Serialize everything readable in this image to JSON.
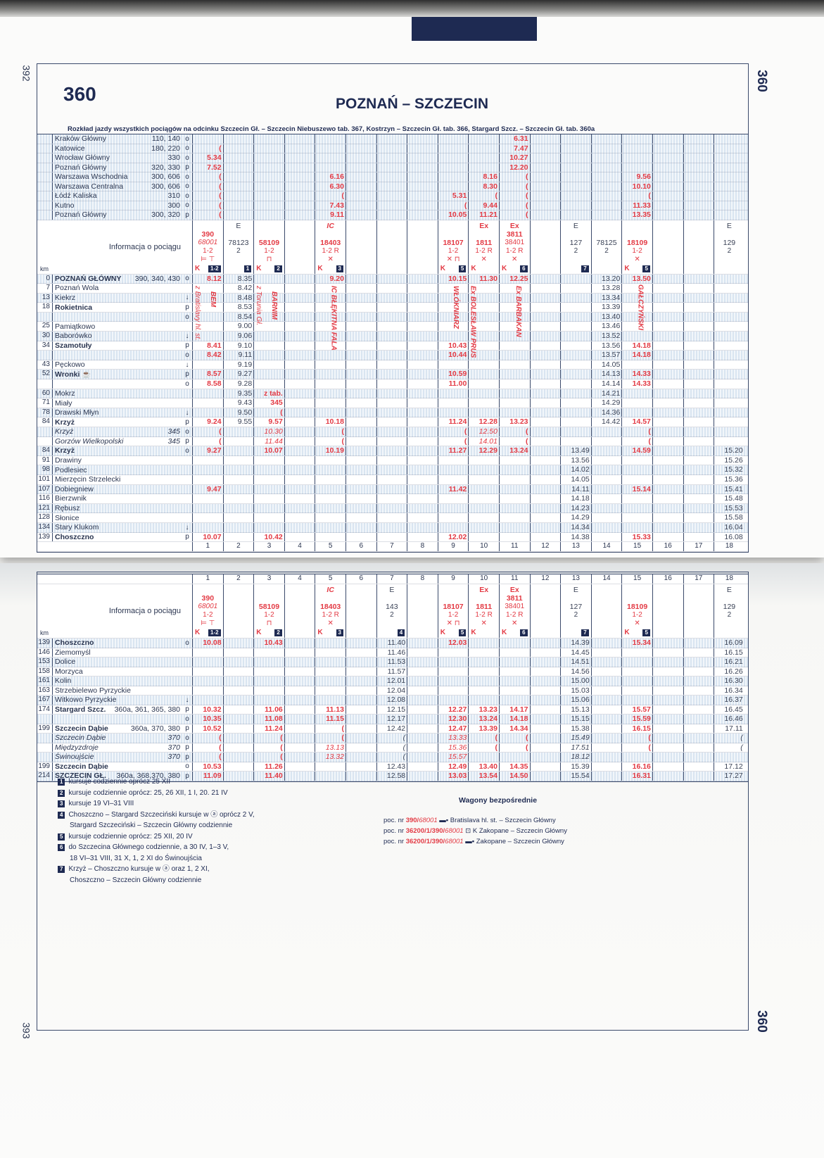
{
  "page_numbers": {
    "left_top": "392",
    "left_bottom": "393"
  },
  "side_label": "360",
  "header": {
    "table_number": "360",
    "title": "POZNAŃ – SZCZECIN",
    "subtitle": "Rozkład jazdy wszystkich pociągów na odcinku Szczecin Gł. – Szczecin Niebuszewo tab. 367, Kostrzyn – Szczecin Gł. tab. 366, Stargard Szcz. – Szczecin Gł.  tab. 360a"
  },
  "colors": {
    "red_train": "#e33a44",
    "ink": "#1e2a52",
    "shade": "#d9e5f1"
  },
  "red_columns": [
    1,
    3,
    5,
    9,
    10,
    11,
    15
  ],
  "info_label": "Informacja o pociągu",
  "km_label": "km",
  "column_numbers": [
    "1",
    "2",
    "3",
    "4",
    "5",
    "6",
    "7",
    "8",
    "9",
    "10",
    "11",
    "12",
    "13",
    "14",
    "15",
    "16",
    "17",
    "18"
  ],
  "top": {
    "feeders": [
      {
        "name": "Kraków Główny",
        "ref": "110, 140",
        "m": "o",
        "t": {
          "11": "6.31"
        }
      },
      {
        "name": "Katowice",
        "ref": "180, 220",
        "m": "o",
        "t": {
          "1": "(",
          "11": "7.47"
        }
      },
      {
        "name": "Wrocław Główny",
        "ref": "330",
        "m": "o",
        "t": {
          "1": "5.34",
          "11": "10.27"
        }
      },
      {
        "name": "Poznań Główny",
        "ref": "320, 330",
        "m": "p",
        "t": {
          "1": "7.52",
          "11": "12.20"
        }
      },
      {
        "name": "Warszawa Wschodnia",
        "ref": "300, 606",
        "m": "o",
        "t": {
          "1": "(",
          "5": "6.16",
          "10": "8.16",
          "11": "(",
          "15": "9.56"
        }
      },
      {
        "name": "Warszawa Centralna",
        "ref": "300, 606",
        "m": "o",
        "t": {
          "1": "(",
          "5": "6.30",
          "10": "8.30",
          "11": "(",
          "15": "10.10"
        }
      },
      {
        "name": "Łódź Kaliska",
        "ref": "310",
        "m": "o",
        "t": {
          "1": "(",
          "5": "(",
          "9": "5.31",
          "10": "(",
          "11": "(",
          "15": "("
        }
      },
      {
        "name": "Kutno",
        "ref": "300",
        "m": "o",
        "t": {
          "1": "(",
          "5": "7.43",
          "9": "(",
          "10": "9.44",
          "11": "(",
          "15": "11.33"
        }
      },
      {
        "name": "Poznań Główny",
        "ref": "300, 320",
        "m": "p",
        "t": {
          "1": "(",
          "5": "9.11",
          "9": "10.05",
          "10": "11.21",
          "11": "(",
          "15": "13.35"
        }
      }
    ],
    "info": [
      {
        "col": 1,
        "top": "",
        "lines": [
          "390",
          "68001",
          "1-2",
          "sleeper couchette"
        ],
        "k": "K",
        "note": "1-2"
      },
      {
        "col": 2,
        "top": "E",
        "lines": [
          "78123",
          "2"
        ],
        "k": "",
        "note": "1"
      },
      {
        "col": 3,
        "top": "",
        "lines": [
          "58109",
          "1-2",
          "bicycle"
        ],
        "k": "K",
        "note": "2"
      },
      {
        "col": 5,
        "top": "IC",
        "lines": [
          "18403",
          "1-2 R",
          "✕"
        ],
        "k": "K",
        "note": "3"
      },
      {
        "col": 9,
        "top": "",
        "lines": [
          "18107",
          "1-2",
          "✕ bicycle"
        ],
        "k": "K",
        "note": "5"
      },
      {
        "col": 10,
        "top": "Ex",
        "lines": [
          "1811",
          "1-2 R",
          "✕"
        ],
        "k": "K",
        "note": ""
      },
      {
        "col": 11,
        "top": "Ex",
        "lines": [
          "3811",
          "38401",
          "1-2 R",
          "✕"
        ],
        "k": "K",
        "note": "6"
      },
      {
        "col": 13,
        "top": "E",
        "lines": [
          "127",
          "2"
        ],
        "k": "",
        "note": "7"
      },
      {
        "col": 14,
        "top": "",
        "lines": [
          "78125",
          "2"
        ],
        "k": "",
        "note": ""
      },
      {
        "col": 15,
        "top": "",
        "lines": [
          "18109",
          "1-2",
          "✕"
        ],
        "k": "K",
        "note": "5"
      },
      {
        "col": 18,
        "top": "E",
        "lines": [
          "129",
          "2"
        ],
        "k": "",
        "note": ""
      }
    ],
    "rows": [
      {
        "km": "0",
        "name": "POZNAŃ GŁÓWNY",
        "ref": "390, 340, 430",
        "m": "o",
        "s": "b",
        "t": {
          "1": "8.12",
          "2": "8.35",
          "5": "9.20",
          "9": "10.15",
          "10": "11.30",
          "11": "12.25",
          "14": "13.20",
          "15": "13.50"
        }
      },
      {
        "km": "7",
        "name": "Poznań Wola",
        "ref": "",
        "m": "",
        "s": "",
        "t": {
          "2": "8.42",
          "14": "13.28"
        }
      },
      {
        "km": "13",
        "name": "Kiekrz",
        "ref": "",
        "m": "↓",
        "s": "",
        "t": {
          "2": "8.48",
          "14": "13.34"
        }
      },
      {
        "km": "18",
        "name": "Rokietnica",
        "ref": "",
        "m": "p",
        "s": "b",
        "t": {
          "2": "8.53",
          "14": "13.39"
        }
      },
      {
        "km": "",
        "name": "",
        "ref": "",
        "m": "o",
        "s": "",
        "t": {
          "2": "8.54",
          "14": "13.40"
        }
      },
      {
        "km": "25",
        "name": "Pamiątkowo",
        "ref": "",
        "m": "",
        "s": "",
        "t": {
          "2": "9.00",
          "14": "13.46"
        }
      },
      {
        "km": "30",
        "name": "Baborówko",
        "ref": "",
        "m": "↓",
        "s": "",
        "t": {
          "2": "9.06",
          "14": "13.52"
        }
      },
      {
        "km": "34",
        "name": "Szamotuły",
        "ref": "",
        "m": "p",
        "s": "b",
        "t": {
          "1": "8.41",
          "2": "9.10",
          "9": "10.43",
          "14": "13.56",
          "15": "14.18"
        }
      },
      {
        "km": "",
        "name": "",
        "ref": "",
        "m": "o",
        "s": "",
        "t": {
          "1": "8.42",
          "2": "9.11",
          "9": "10.44",
          "14": "13.57",
          "15": "14.18"
        }
      },
      {
        "km": "43",
        "name": "Pęckowo",
        "ref": "",
        "m": "↓",
        "s": "",
        "t": {
          "2": "9.19",
          "14": "14.05"
        }
      },
      {
        "km": "52",
        "name": "Wronki ☕",
        "ref": "",
        "m": "p",
        "s": "b",
        "t": {
          "1": "8.57",
          "2": "9.27",
          "9": "10.59",
          "14": "14.13",
          "15": "14.33"
        }
      },
      {
        "km": "",
        "name": "",
        "ref": "",
        "m": "o",
        "s": "",
        "t": {
          "1": "8.58",
          "2": "9.28",
          "9": "11.00",
          "14": "14.14",
          "15": "14.33"
        }
      },
      {
        "km": "60",
        "name": "Mokrz",
        "ref": "",
        "m": "",
        "s": "",
        "t": {
          "2": "9.35",
          "3": "z tab.",
          "14": "14.21"
        }
      },
      {
        "km": "71",
        "name": "Miały",
        "ref": "",
        "m": "",
        "s": "",
        "t": {
          "2": "9.43",
          "3": "345",
          "14": "14.29"
        }
      },
      {
        "km": "78",
        "name": "Drawski Młyn",
        "ref": "",
        "m": "↓",
        "s": "",
        "t": {
          "2": "9.50",
          "3": "(",
          "14": "14.36"
        }
      },
      {
        "km": "84",
        "name": "Krzyż",
        "ref": "",
        "m": "p",
        "s": "b",
        "t": {
          "1": "9.24",
          "2": "9.55",
          "3": "9.57",
          "5": "10.18",
          "9": "11.24",
          "10": "12.28",
          "11": "13.23",
          "14": "14.42",
          "15": "14.57"
        }
      },
      {
        "km": "",
        "name": "Krzyż",
        "ref": "345",
        "m": "o",
        "s": "i",
        "t": {
          "1": "(",
          "3": "10.30",
          "5": "(",
          "9": "(",
          "10": "12.50",
          "11": "(",
          "15": "("
        }
      },
      {
        "km": "",
        "name": "Gorzów Wielkopolski",
        "ref": "345",
        "m": "p",
        "s": "i",
        "t": {
          "1": "(",
          "3": "11.44",
          "5": "(",
          "9": "(",
          "10": "14.01",
          "11": "(",
          "15": "("
        }
      },
      {
        "km": "84",
        "name": "Krzyż",
        "ref": "",
        "m": "o",
        "s": "b",
        "t": {
          "1": "9.27",
          "3": "10.07",
          "5": "10.19",
          "9": "11.27",
          "10": "12.29",
          "11": "13.24",
          "13": "13.49",
          "15": "14.59",
          "18": "15.20"
        }
      },
      {
        "km": "91",
        "name": "Drawiny",
        "ref": "",
        "m": "",
        "s": "",
        "t": {
          "13": "13.56",
          "18": "15.26"
        }
      },
      {
        "km": "98",
        "name": "Podlesiec",
        "ref": "",
        "m": "",
        "s": "",
        "t": {
          "13": "14.02",
          "18": "15.32"
        }
      },
      {
        "km": "101",
        "name": "Mierzęcin Strzelecki",
        "ref": "",
        "m": "",
        "s": "",
        "t": {
          "13": "14.05",
          "18": "15.36"
        }
      },
      {
        "km": "107",
        "name": "Dobiegniew",
        "ref": "",
        "m": "",
        "s": "",
        "t": {
          "1": "9.47",
          "9": "11.42",
          "13": "14.11",
          "15": "15.14",
          "18": "15.41"
        }
      },
      {
        "km": "116",
        "name": "Bierzwnik",
        "ref": "",
        "m": "",
        "s": "",
        "t": {
          "13": "14.18",
          "18": "15.48"
        }
      },
      {
        "km": "121",
        "name": "Rębusz",
        "ref": "",
        "m": "",
        "s": "",
        "t": {
          "13": "14.23",
          "18": "15.53"
        }
      },
      {
        "km": "128",
        "name": "Słonice",
        "ref": "",
        "m": "",
        "s": "",
        "t": {
          "13": "14.29",
          "18": "15.58"
        }
      },
      {
        "km": "134",
        "name": "Stary Klukom",
        "ref": "",
        "m": "↓",
        "s": "",
        "t": {
          "13": "14.34",
          "18": "16.04"
        }
      },
      {
        "km": "139",
        "name": "Choszczno",
        "ref": "",
        "m": "p",
        "s": "b",
        "t": {
          "1": "10.07",
          "3": "10.42",
          "9": "12.02",
          "13": "14.38",
          "15": "15.33",
          "18": "16.08"
        }
      }
    ],
    "vertical_labels": [
      {
        "col": 1,
        "text": "z Bratislavy hl. st.",
        "style": "it"
      },
      {
        "col": 1,
        "text": "BEM",
        "style": "bold"
      },
      {
        "col": 3,
        "text": "z Torunia Gł.",
        "style": "it"
      },
      {
        "col": 3,
        "text": "BARNIM",
        "style": "bold"
      },
      {
        "col": 5,
        "text": "IC BŁĘKITNA FALA",
        "style": "bold"
      },
      {
        "col": 9,
        "text": "WŁÓKNIARZ",
        "style": "bold"
      },
      {
        "col": 10,
        "text": "Ex BOLESŁAW PRUS",
        "style": "bold"
      },
      {
        "col": 11,
        "text": "Ex BARBAKAN",
        "style": "bold"
      },
      {
        "col": 15,
        "text": "GAŁCZYŃSKI",
        "style": "bold"
      }
    ]
  },
  "bottom": {
    "info": [
      {
        "col": 1,
        "top": "",
        "lines": [
          "390",
          "68001",
          "1-2",
          "sleeper couchette"
        ],
        "k": "K",
        "note": "1-2"
      },
      {
        "col": 3,
        "top": "",
        "lines": [
          "58109",
          "1-2",
          "bicycle"
        ],
        "k": "K",
        "note": "2"
      },
      {
        "col": 5,
        "top": "IC",
        "lines": [
          "18403",
          "1-2 R",
          "✕"
        ],
        "k": "K",
        "note": "3"
      },
      {
        "col": 7,
        "top": "E",
        "lines": [
          "143",
          "2"
        ],
        "k": "",
        "note": "4"
      },
      {
        "col": 9,
        "top": "",
        "lines": [
          "18107",
          "1-2",
          "✕ bicycle"
        ],
        "k": "K",
        "note": "5"
      },
      {
        "col": 10,
        "top": "Ex",
        "lines": [
          "1811",
          "1-2 R",
          "✕"
        ],
        "k": "K",
        "note": ""
      },
      {
        "col": 11,
        "top": "Ex",
        "lines": [
          "3811",
          "38401",
          "1-2 R",
          "✕"
        ],
        "k": "K",
        "note": "6"
      },
      {
        "col": 13,
        "top": "E",
        "lines": [
          "127",
          "2"
        ],
        "k": "",
        "note": "7"
      },
      {
        "col": 15,
        "top": "",
        "lines": [
          "18109",
          "1-2",
          "✕"
        ],
        "k": "K",
        "note": "5"
      },
      {
        "col": 18,
        "top": "E",
        "lines": [
          "129",
          "2"
        ],
        "k": "",
        "note": ""
      }
    ],
    "rows": [
      {
        "km": "139",
        "name": "Choszczno",
        "ref": "",
        "m": "o",
        "s": "b",
        "t": {
          "1": "10.08",
          "3": "10.43",
          "7": "11.40",
          "9": "12.03",
          "13": "14.39",
          "15": "15.34",
          "18": "16.09"
        }
      },
      {
        "km": "146",
        "name": "Ziemomyśl",
        "ref": "",
        "m": "",
        "s": "",
        "t": {
          "7": "11.46",
          "13": "14.45",
          "18": "16.15"
        }
      },
      {
        "km": "153",
        "name": "Dolice",
        "ref": "",
        "m": "",
        "s": "",
        "t": {
          "7": "11.53",
          "13": "14.51",
          "18": "16.21"
        }
      },
      {
        "km": "158",
        "name": "Morzyca",
        "ref": "",
        "m": "",
        "s": "",
        "t": {
          "7": "11.57",
          "13": "14.56",
          "18": "16.26"
        }
      },
      {
        "km": "161",
        "name": "Kolin",
        "ref": "",
        "m": "",
        "s": "",
        "t": {
          "7": "12.01",
          "13": "15.00",
          "18": "16.30"
        }
      },
      {
        "km": "163",
        "name": "Strzebielewo Pyrzyckie",
        "ref": "",
        "m": "",
        "s": "",
        "t": {
          "7": "12.04",
          "13": "15.03",
          "18": "16.34"
        }
      },
      {
        "km": "167",
        "name": "Witkowo Pyrzyckie",
        "ref": "",
        "m": "↓",
        "s": "",
        "t": {
          "7": "12.08",
          "13": "15.06",
          "18": "16.37"
        }
      },
      {
        "km": "174",
        "name": "Stargard Szcz.",
        "ref": "360a, 361, 365, 380",
        "m": "p",
        "s": "b",
        "t": {
          "1": "10.32",
          "3": "11.06",
          "5": "11.13",
          "7": "12.15",
          "9": "12.27",
          "10": "13.23",
          "11": "14.17",
          "13": "15.13",
          "15": "15.57",
          "18": "16.45"
        }
      },
      {
        "km": "",
        "name": "",
        "ref": "",
        "m": "o",
        "s": "",
        "t": {
          "1": "10.35",
          "3": "11.08",
          "5": "11.15",
          "7": "12.17",
          "9": "12.30",
          "10": "13.24",
          "11": "14.18",
          "13": "15.15",
          "15": "15.59",
          "18": "16.46"
        }
      },
      {
        "km": "199",
        "name": "Szczecin Dąbie",
        "ref": "360a, 370, 380",
        "m": "p",
        "s": "b",
        "t": {
          "1": "10.52",
          "3": "11.24",
          "5": "(",
          "7": "12.42",
          "9": "12.47",
          "10": "13.39",
          "11": "14.34",
          "13": "15.38",
          "15": "16.15",
          "18": "17.11"
        }
      },
      {
        "km": "",
        "name": "Szczecin Dąbie",
        "ref": "370",
        "m": "o",
        "s": "i",
        "t": {
          "1": "(",
          "3": "(",
          "5": "(",
          "7": "(",
          "9": "13.33",
          "10": "(",
          "11": "(",
          "13": "15.49",
          "15": "(",
          "18": "("
        }
      },
      {
        "km": "",
        "name": "Międzyzdroje",
        "ref": "370",
        "m": "p",
        "s": "i",
        "t": {
          "1": "(",
          "3": "(",
          "5": "13.13",
          "7": "(",
          "9": "15.36",
          "10": "(",
          "11": "(",
          "13": "17.51",
          "15": "(",
          "18": "("
        }
      },
      {
        "km": "",
        "name": "Świnoujście",
        "ref": "370",
        "m": "p",
        "s": "i",
        "t": {
          "1": "(",
          "3": "(",
          "5": "13.32",
          "7": "(",
          "9": "15.57",
          "13": "18.12"
        }
      },
      {
        "km": "199",
        "name": "Szczecin Dąbie",
        "ref": "",
        "m": "o",
        "s": "b",
        "t": {
          "1": "10.53",
          "3": "11.26",
          "7": "12.43",
          "9": "12.49",
          "10": "13.40",
          "11": "14.35",
          "13": "15.39",
          "15": "16.16",
          "18": "17.12"
        }
      },
      {
        "km": "214",
        "name": "SZCZECIN GŁ.",
        "ref": "360a, 368,370, 380",
        "m": "p",
        "s": "b",
        "t": {
          "1": "11.09",
          "3": "11.40",
          "7": "12.58",
          "9": "13.03",
          "10": "13.54",
          "11": "14.50",
          "13": "15.54",
          "15": "16.31",
          "18": "17.27"
        }
      }
    ]
  },
  "footnotes": [
    {
      "n": "1",
      "text": "kursuje codziennie oprócz 25 XII",
      "cont": ""
    },
    {
      "n": "2",
      "text": "kursuje codziennie oprócz: 25, 26 XII, 1 I, 20. 21 IV",
      "cont": ""
    },
    {
      "n": "3",
      "text": "kursuje 19 VI–31 VIII",
      "cont": ""
    },
    {
      "n": "4",
      "text": "Choszczno – Stargard Szczeciński kursuje w ⓐ oprócz 2 V,",
      "cont": "Stargard Szczeciński – Szczecin Główny codziennie"
    },
    {
      "n": "5",
      "text": "kursuje codziennie oprócz: 25 XII, 20 IV",
      "cont": ""
    },
    {
      "n": "6",
      "text": "do Szczecina Głównego codziennie, a 30 IV, 1–3 V,",
      "cont": "18 VI–31 VIII, 31 X, 1, 2 XI do Świnoujścia"
    },
    {
      "n": "7",
      "text": "Krzyż – Choszczno kursuje w ⓐ oraz 1, 2 XI,",
      "cont": "Choszczno – Szczecin Główny codziennie"
    }
  ],
  "through_coaches": {
    "title": "Wagony bezpośrednie",
    "items": [
      {
        "prefix": "poc. nr",
        "num": "390/",
        "num2": "68001",
        "icon": "▬▪",
        "route": "Bratislava hl. st.  – Szczecin Główny"
      },
      {
        "prefix": "poc. nr",
        "num": "36200/1/390/",
        "num2": "68001",
        "icon": "⊡",
        "route": "K Zakopane – Szczecin Główny"
      },
      {
        "prefix": "poc. nr",
        "num": "36200/1/390/",
        "num2": "68001",
        "icon": "▬▪",
        "route": "Zakopane – Szczecin Główny"
      }
    ]
  }
}
